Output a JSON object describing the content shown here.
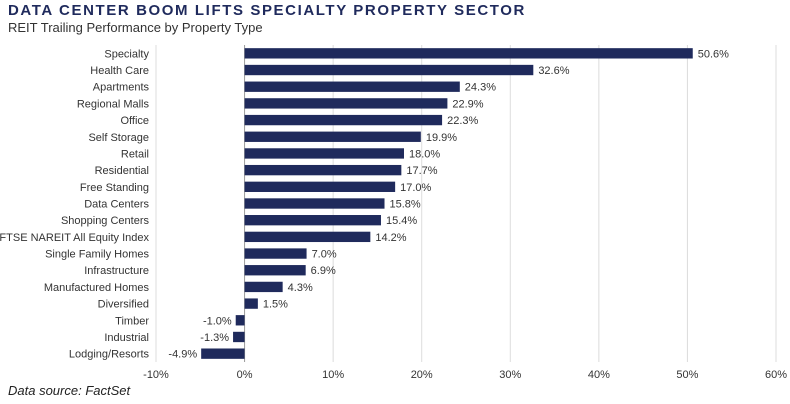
{
  "chart_data": {
    "type": "bar",
    "orientation": "horizontal",
    "title": "DATA CENTER BOOM LIFTS SPECIALTY PROPERTY SECTOR",
    "subtitle": "REIT Trailing Performance by Property Type",
    "source": "Data source: FactSet",
    "categories": [
      "Specialty",
      "Health Care",
      "Apartments",
      "Regional Malls",
      "Office",
      "Self Storage",
      "Retail",
      "Residential",
      "Free Standing",
      "Data Centers",
      "Shopping Centers",
      "FTSE NAREIT All Equity Index",
      "Single Family Homes",
      "Infrastructure",
      "Manufactured Homes",
      "Diversified",
      "Timber",
      "Industrial",
      "Lodging/Resorts"
    ],
    "values": [
      50.6,
      32.6,
      24.3,
      22.9,
      22.3,
      19.9,
      18.0,
      17.7,
      17.0,
      15.8,
      15.4,
      14.2,
      7.0,
      6.9,
      4.3,
      1.5,
      -1.0,
      -1.3,
      -4.9
    ],
    "value_labels": [
      "50.6%",
      "32.6%",
      "24.3%",
      "22.9%",
      "22.3%",
      "19.9%",
      "18.0%",
      "17.7%",
      "17.0%",
      "15.8%",
      "15.4%",
      "14.2%",
      "7.0%",
      "6.9%",
      "4.3%",
      "1.5%",
      "-1.0%",
      "-1.3%",
      "-4.9%"
    ],
    "xlim": [
      -10,
      60
    ],
    "xticks": [
      -10,
      0,
      10,
      20,
      30,
      40,
      50,
      60
    ],
    "xtick_labels": [
      "-10%",
      "0%",
      "10%",
      "20%",
      "30%",
      "40%",
      "50%",
      "60%"
    ],
    "grid": "vertical",
    "bar_color": "#1f2a5c",
    "xlabel": "",
    "ylabel": ""
  }
}
